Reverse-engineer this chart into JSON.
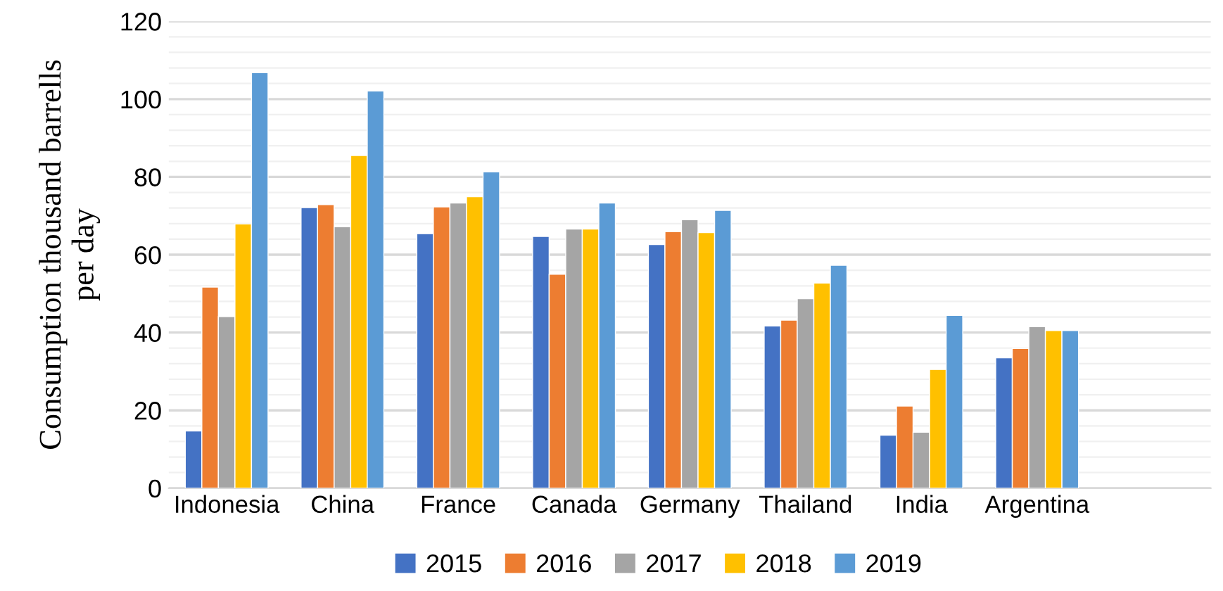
{
  "chart_data": {
    "type": "bar",
    "ylabel": "Consumption thousand barrells\nper day",
    "categories": [
      "Indonesia",
      "China",
      "France",
      "Canada",
      "Germany",
      "Thailand",
      "India",
      "Argentina"
    ],
    "series": [
      {
        "name": "2015",
        "color": "#4472c4",
        "values": [
          14.7,
          72.1,
          65.4,
          64.7,
          62.6,
          41.7,
          13.6,
          33.5
        ]
      },
      {
        "name": "2016",
        "color": "#ed7d31",
        "values": [
          51.7,
          72.9,
          72.3,
          55.0,
          65.9,
          43.2,
          21.1,
          35.9
        ]
      },
      {
        "name": "2017",
        "color": "#a5a5a5",
        "values": [
          44.1,
          67.2,
          73.3,
          66.6,
          69.0,
          48.7,
          14.4,
          41.5
        ]
      },
      {
        "name": "2018",
        "color": "#ffc000",
        "values": [
          67.9,
          85.5,
          74.9,
          66.6,
          65.7,
          52.7,
          30.5,
          40.5
        ]
      },
      {
        "name": "2019",
        "color": "#5b9bd5",
        "values": [
          106.8,
          102.1,
          81.3,
          73.3,
          71.4,
          57.3,
          44.4,
          40.5
        ]
      }
    ],
    "ylim": [
      0,
      120
    ],
    "yticks": [
      0,
      {
        "value": 4,
        "label": null
      },
      {
        "value": 8,
        "label": null
      },
      {
        "value": 12,
        "label": null
      },
      {
        "value": 16,
        "label": null
      },
      20,
      {
        "value": 24,
        "label": null
      },
      {
        "value": 28,
        "label": null
      },
      {
        "value": 32,
        "label": null
      },
      {
        "value": 36,
        "label": null
      },
      40,
      {
        "value": 44,
        "label": null
      },
      {
        "value": 48,
        "label": null
      },
      {
        "value": 52,
        "label": null
      },
      {
        "value": 56,
        "label": null
      },
      60,
      {
        "value": 64,
        "label": null
      },
      {
        "value": 68,
        "label": null
      },
      {
        "value": 72,
        "label": null
      },
      {
        "value": 76,
        "label": null
      },
      80,
      {
        "value": 84,
        "label": null
      },
      {
        "value": 88,
        "label": null
      },
      {
        "value": 92,
        "label": null
      },
      {
        "value": 96,
        "label": null
      },
      100,
      {
        "value": 104,
        "label": null
      },
      {
        "value": 108,
        "label": null
      },
      {
        "value": 112,
        "label": null
      },
      {
        "value": 116,
        "label": null
      },
      120
    ],
    "grid": "y",
    "legend": "bottom"
  }
}
